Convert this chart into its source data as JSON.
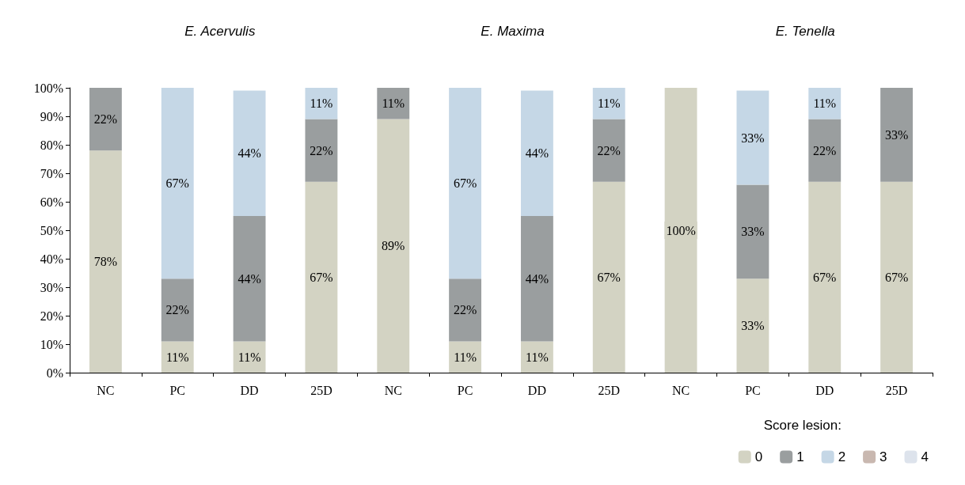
{
  "chart_data": {
    "type": "bar",
    "stacked": true,
    "legend_title": "Score lesion:",
    "legend": "bottom right",
    "grid": false,
    "annotations": [
      "E. Acervulis",
      "E. Maxima",
      "E. Tenella"
    ],
    "categories": [
      "NC",
      "PC",
      "DD",
      "25D",
      "NC",
      "PC",
      "DD",
      "25D",
      "NC",
      "PC",
      "DD",
      "25D"
    ],
    "ylim": [
      0,
      100
    ],
    "yticks": [
      {
        "value": 0,
        "label": "0%"
      },
      {
        "value": 10,
        "label": "10%"
      },
      {
        "value": 20,
        "label": "20%"
      },
      {
        "value": 30,
        "label": "30%"
      },
      {
        "value": 40,
        "label": "40%"
      },
      {
        "value": 50,
        "label": "50%"
      },
      {
        "value": 60,
        "label": "60%"
      },
      {
        "value": 70,
        "label": "70%"
      },
      {
        "value": 80,
        "label": "80%"
      },
      {
        "value": 90,
        "label": "90%"
      },
      {
        "value": 100,
        "label": "100%"
      }
    ],
    "series": [
      {
        "name": "0",
        "color": "#d3d3c3",
        "values": [
          78,
          11,
          11,
          67,
          89,
          11,
          11,
          67,
          100,
          33,
          67,
          67
        ],
        "value_labels": [
          "78%",
          "11%",
          "11%",
          "67%",
          "89%",
          "11%",
          "11%",
          "67%",
          "100%",
          "33%",
          "67%",
          "67%"
        ]
      },
      {
        "name": "1",
        "color": "#9a9e9f",
        "values": [
          22,
          22,
          44,
          22,
          11,
          22,
          44,
          22,
          null,
          33,
          22,
          33
        ],
        "value_labels": [
          "22%",
          "22%",
          "44%",
          "22%",
          "11%",
          "22%",
          "44%",
          "22%",
          null,
          "33%",
          "22%",
          "33%"
        ]
      },
      {
        "name": "2",
        "color": "#c5d7e6",
        "values": [
          null,
          67,
          44,
          11,
          null,
          67,
          44,
          11,
          null,
          33,
          11,
          null
        ],
        "value_labels": [
          null,
          "67%",
          "44%",
          "11%",
          null,
          "67%",
          "44%",
          "11%",
          null,
          "33%",
          "11%",
          null
        ]
      },
      {
        "name": "3",
        "color": "#c9b8b0",
        "values": [
          null,
          null,
          null,
          null,
          null,
          null,
          null,
          null,
          null,
          null,
          null,
          null
        ],
        "value_labels": [
          null,
          null,
          null,
          null,
          null,
          null,
          null,
          null,
          null,
          null,
          null,
          null
        ]
      },
      {
        "name": "4",
        "color": "#dde3ec",
        "values": [
          null,
          null,
          null,
          null,
          null,
          null,
          null,
          null,
          null,
          null,
          null,
          null
        ],
        "value_labels": [
          null,
          null,
          null,
          null,
          null,
          null,
          null,
          null,
          null,
          null,
          null,
          null
        ]
      }
    ]
  }
}
